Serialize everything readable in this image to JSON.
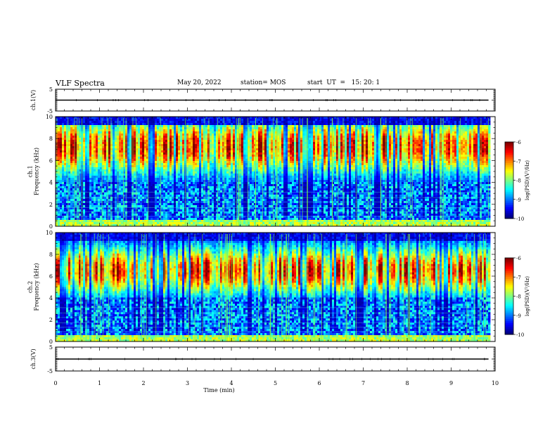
{
  "header": {
    "title": "VLF Spectra",
    "date": "May 20, 2022",
    "station": "station= MOS",
    "start_ut": "start  UT  =   15: 20: 1"
  },
  "colors": {
    "spectrogram_low": "#00007f",
    "spectrogram_mid": "#00ff80",
    "spectrogram_high": "#ff2020",
    "trace": "#000000"
  },
  "chart_data": [
    {
      "type": "line",
      "name": "ch1-trace",
      "ylabel": "ch.1(V)",
      "ylim": [
        -5,
        5
      ],
      "yticks": [
        "5",
        "-5"
      ],
      "x": [
        0,
        9.85
      ],
      "y": [
        0,
        0
      ]
    },
    {
      "type": "heatmap",
      "name": "ch1-spectrogram",
      "ylabel": "ch.1\nFrequency (kHz)",
      "ylim": [
        0,
        10
      ],
      "yticks": [
        "0",
        "2",
        "4",
        "6",
        "8",
        "10"
      ],
      "x_range_min": [
        0,
        9.85
      ],
      "intensity_peak_khz": [
        6,
        8.5
      ],
      "colorbar": {
        "label": "log(PSD)(V²/Hz)",
        "ticks": [
          "-6",
          "-7",
          "-8",
          "-9",
          "-10"
        ],
        "range": [
          -10,
          -6
        ]
      }
    },
    {
      "type": "heatmap",
      "name": "ch2-spectrogram",
      "ylabel": "ch.2\nFrequency (kHz)",
      "ylim": [
        0,
        10
      ],
      "yticks": [
        "0",
        "2",
        "4",
        "6",
        "8",
        "10"
      ],
      "x_range_min": [
        0,
        9.85
      ],
      "intensity_peak_khz": [
        5.5,
        7.5
      ],
      "colorbar": {
        "label": "log(PSD)(V²/Hz)",
        "ticks": [
          "-6",
          "-7",
          "-8",
          "-9",
          "-10"
        ],
        "range": [
          -10,
          -6
        ]
      }
    },
    {
      "type": "line",
      "name": "ch3-trace",
      "ylabel": "ch.3(V)",
      "ylim": [
        -5,
        5
      ],
      "yticks": [
        "5",
        "-5"
      ],
      "x": [
        0,
        9.85
      ],
      "y": [
        0,
        0
      ]
    }
  ],
  "xaxis": {
    "label": "Time  (min)",
    "range": [
      0,
      10
    ],
    "ticks": [
      "0",
      "1",
      "2",
      "3",
      "4",
      "5",
      "6",
      "7",
      "8",
      "9",
      "10"
    ]
  }
}
